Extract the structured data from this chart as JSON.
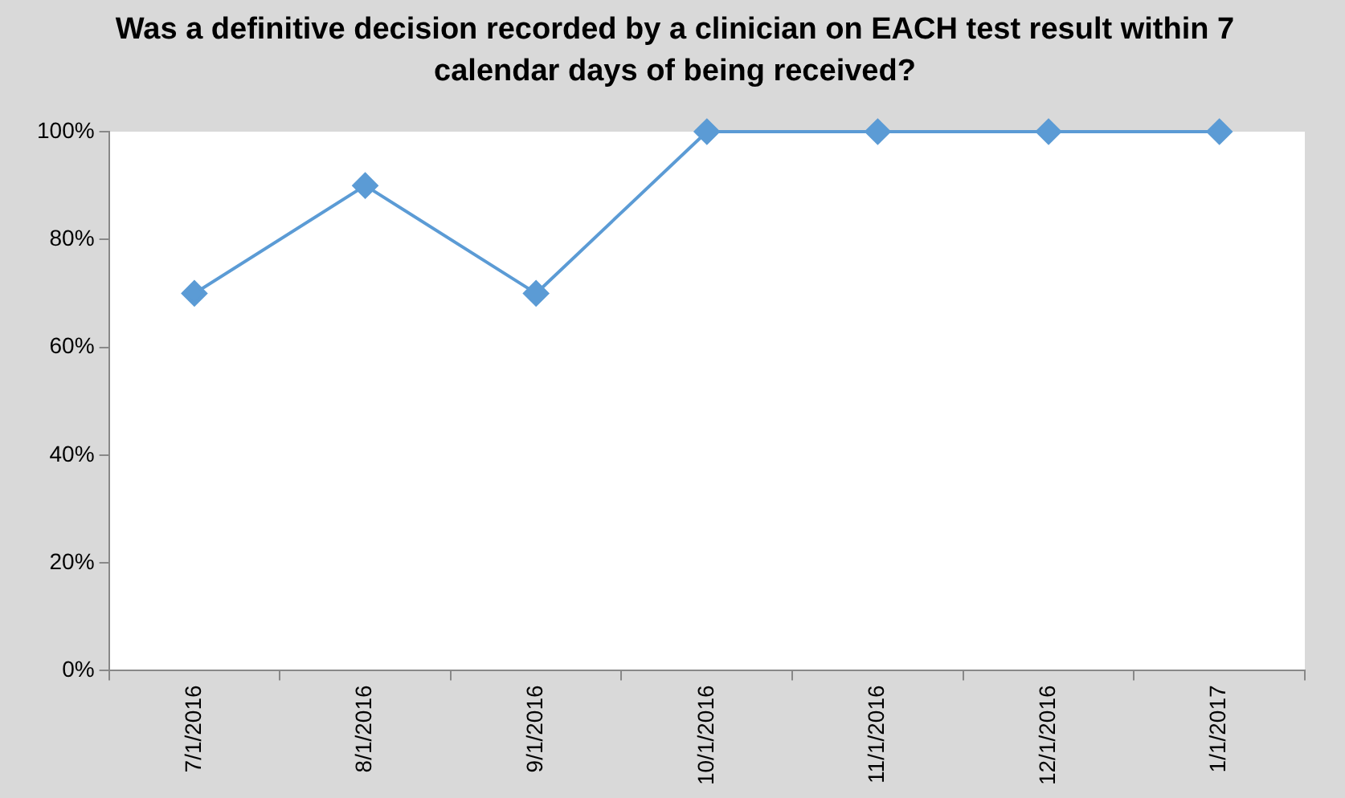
{
  "chart_data": {
    "type": "line",
    "title": "Was a definitive decision recorded by a clinician on EACH test result within 7 calendar days of being received?",
    "categories": [
      "7/1/2016",
      "8/1/2016",
      "9/1/2016",
      "10/1/2016",
      "11/1/2016",
      "12/1/2016",
      "1/1/2017"
    ],
    "series": [
      {
        "color": "#5b9bd5",
        "values": [
          70,
          90,
          70,
          100,
          100,
          100,
          100
        ]
      }
    ],
    "ylim": [
      0,
      100
    ],
    "yticks": [
      {
        "value": 0,
        "label": "0%"
      },
      {
        "value": 20,
        "label": "20%"
      },
      {
        "value": 40,
        "label": "40%"
      },
      {
        "value": 60,
        "label": "60%"
      },
      {
        "value": 80,
        "label": "80%"
      },
      {
        "value": 100,
        "label": "100%"
      }
    ],
    "grid": false,
    "marker": "diamond",
    "line_style": "solid"
  }
}
